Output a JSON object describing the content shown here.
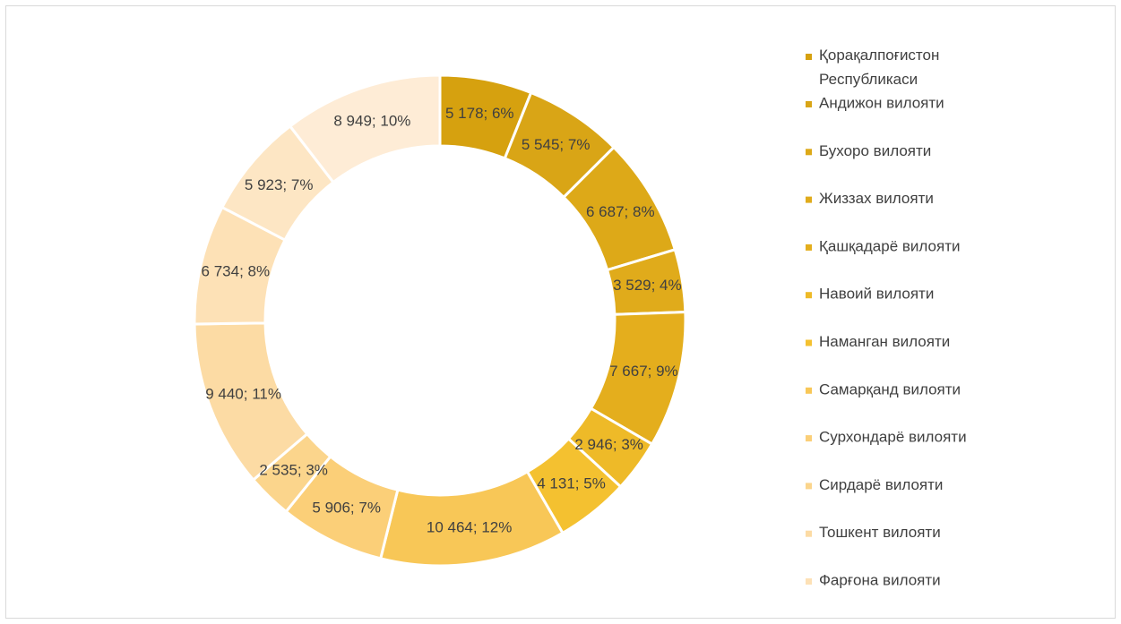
{
  "chart_data": {
    "type": "pie",
    "categories": [
      "Қорақалпоғистон Республикаси",
      "Андижон вилояти",
      "Бухоро вилояти",
      "Жиззах вилояти",
      "Қашқадарё вилояти",
      "Навоий вилояти",
      "Наманган вилояти",
      "Самарқанд вилояти",
      "Сурхондарё вилояти",
      "Сирдарё вилояти",
      "Тошкент вилояти",
      "Фарғона вилояти",
      null,
      null
    ],
    "values": [
      5178,
      5545,
      6687,
      3529,
      7667,
      2946,
      4131,
      10464,
      5906,
      2535,
      9440,
      6734,
      5923,
      8949
    ],
    "value_labels": [
      "5 178; 6%",
      "5 545; 7%",
      "6 687; 8%",
      "3 529; 4%",
      "7 667; 9%",
      "2 946; 3%",
      "4 131; 5%",
      "10 464; 12%",
      "5 906; 7%",
      "2 535; 3%",
      "9 440; 11%",
      "6 734; 8%",
      "5 923; 7%",
      "8 949; 10%"
    ],
    "colors": [
      "#d6a10f",
      "#d9a516",
      "#dda918",
      "#e0ab1b",
      "#e4ae1d",
      "#eeba28",
      "#f4c130",
      "#f8c757",
      "#fbcf78",
      "#fbd58c",
      "#fcdba4",
      "#fde1b6",
      "#fde6c4",
      "#feecd6"
    ],
    "donut": true,
    "legend": "right"
  }
}
